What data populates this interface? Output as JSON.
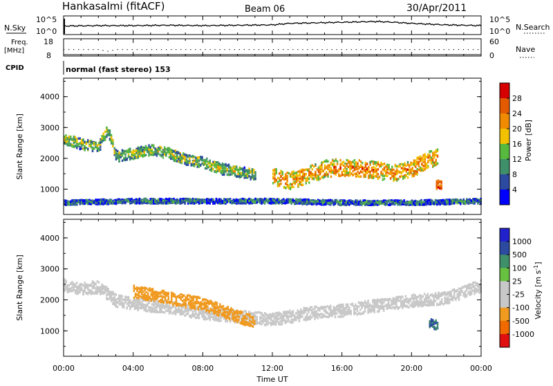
{
  "header": {
    "station": "Hankasalmi (fitACF)",
    "beam": "Beam 06",
    "date": "30/Apr/2011"
  },
  "noise_panel": {
    "left_label": "N.Sky",
    "right_label": "N.Search",
    "left_ticks": [
      "10^5",
      "10^0"
    ],
    "right_ticks": [
      "10^5",
      "10^0"
    ]
  },
  "freq_panel": {
    "left_label_1": "Freq.",
    "left_label_2": "[MHz]",
    "left_ticks": [
      "18",
      "8"
    ],
    "right_label": "Nave",
    "right_ticks": [
      "60",
      "0"
    ]
  },
  "cpid": {
    "label": "CPID",
    "text": "normal (fast stereo) 153"
  },
  "power_panel": {
    "ylabel": "Slant Range [km]",
    "yticks": [
      "4000",
      "3000",
      "2000",
      "1000"
    ],
    "colorbar_label": "Power [dB]",
    "colorbar_ticks": [
      "28",
      "24",
      "20",
      "16",
      "12",
      "8",
      "4"
    ]
  },
  "velocity_panel": {
    "ylabel": "Slant Range [km]",
    "yticks": [
      "4000",
      "3000",
      "2000",
      "1000"
    ],
    "colorbar_label": "Velocity [m s",
    "colorbar_label_sup": "-1",
    "colorbar_label_end": "]",
    "colorbar_ticks": [
      "1000",
      "500",
      "100",
      "25",
      "-25",
      "-100",
      "-500",
      "-1000"
    ]
  },
  "xaxis": {
    "label": "Time UT",
    "ticks": [
      "00:00",
      "04:00",
      "08:00",
      "12:00",
      "16:00",
      "20:00",
      "00:00"
    ]
  },
  "colors": {
    "power_scale": [
      "#0000ff",
      "#2b4aa0",
      "#3f8f6a",
      "#58b93f",
      "#f2c200",
      "#f08a00",
      "#e45a00",
      "#d60000"
    ],
    "velocity_scale": [
      "#e01010",
      "#f06a00",
      "#f09a20",
      "#c8c8c8",
      "#c8c8c8",
      "#67c040",
      "#3f8f6a",
      "#2b4aa0",
      "#2222cc"
    ],
    "ground_scatter": "#c8c8c8"
  },
  "chart_data": [
    {
      "type": "line",
      "title": "",
      "description_key": "noise",
      "xlabel": "",
      "ylabel": "",
      "x_range": [
        "00:00",
        "24:00"
      ],
      "ylim": [
        0,
        5
      ],
      "y_scale": "log10",
      "series": [
        {
          "x": [
            0,
            2,
            4,
            6,
            8,
            10,
            12,
            13,
            14,
            16,
            18,
            19,
            20,
            22,
            24
          ],
          "values": [
            2.3,
            2.4,
            2.4,
            2.5,
            2.4,
            2.5,
            2.6,
            3.0,
            3.1,
            3.3,
            3.5,
            3.3,
            3.0,
            2.6,
            2.4
          ]
        }
      ]
    },
    {
      "type": "scatter",
      "title": "",
      "xlabel": "",
      "ylabel": "Freq. [MHz]",
      "x_range": [
        "00:00",
        "24:00"
      ],
      "ylim": [
        8,
        18
      ],
      "series": [
        {
          "x": [
            0,
            2.0,
            2.5,
            3.0,
            6,
            10,
            14,
            18,
            22,
            24
          ],
          "values": [
            12,
            12,
            11,
            12,
            12,
            12,
            12,
            12,
            12,
            12
          ]
        }
      ]
    },
    {
      "type": "heatmap",
      "title": "",
      "xlabel": "Time UT",
      "ylabel": "Slant Range [km]",
      "x_range": [
        "00:00",
        "24:00"
      ],
      "ylim": [
        180,
        4600
      ],
      "colorbar": {
        "label": "Power [dB]",
        "range": [
          0,
          30
        ],
        "ticks": [
          4,
          8,
          12,
          16,
          20,
          24,
          28
        ]
      },
      "bands": [
        {
          "name": "evening-band",
          "t": [
            0,
            1,
            2,
            2.5,
            3,
            4,
            5,
            6,
            7,
            8,
            9,
            10,
            11
          ],
          "range": [
            2650,
            2500,
            2400,
            3000,
            2100,
            2200,
            2300,
            2200,
            2000,
            1900,
            1700,
            1600,
            1500
          ],
          "width": 350,
          "power": 13
        },
        {
          "name": "main-band",
          "t": [
            12,
            13,
            14,
            15,
            16,
            17,
            18,
            19,
            20,
            21,
            21.5
          ],
          "range": [
            1450,
            1300,
            1500,
            1700,
            1750,
            1700,
            1650,
            1550,
            1700,
            2000,
            2100
          ],
          "width": 550,
          "power": 20
        },
        {
          "name": "near-range",
          "t": [
            0,
            4,
            8,
            12,
            16,
            20,
            24
          ],
          "range": [
            600,
            650,
            650,
            650,
            600,
            600,
            650
          ],
          "width": 150,
          "power": 8
        },
        {
          "name": "spot",
          "t": [
            21.4,
            21.7
          ],
          "range": [
            1200,
            1150
          ],
          "width": 300,
          "power": 25
        }
      ]
    },
    {
      "type": "heatmap",
      "title": "",
      "xlabel": "Time UT",
      "ylabel": "Slant Range [km]",
      "x_range": [
        "00:00",
        "24:00"
      ],
      "ylim": [
        180,
        4600
      ],
      "colorbar": {
        "label": "Velocity [m s-1]",
        "ticks": [
          1000,
          500,
          100,
          25,
          -25,
          -100,
          -500,
          -1000
        ]
      },
      "bands": [
        {
          "name": "ground-scatter",
          "t": [
            0,
            1,
            2,
            3,
            4,
            6,
            8,
            10,
            12,
            14,
            16,
            18,
            20,
            22,
            24
          ],
          "range": [
            2500,
            2400,
            2450,
            2000,
            1900,
            1800,
            1600,
            1500,
            1400,
            1600,
            1700,
            1850,
            2000,
            2100,
            2500
          ],
          "width": 400,
          "velocity": 0
        },
        {
          "name": "negative-patches",
          "t": [
            4,
            5,
            6,
            7,
            8,
            9,
            10,
            11
          ],
          "range": [
            2300,
            2200,
            2100,
            2000,
            1900,
            1700,
            1500,
            1300
          ],
          "width": 400,
          "velocity": -300
        },
        {
          "name": "positive-patch",
          "t": [
            21.0,
            21.5
          ],
          "range": [
            1300,
            1200
          ],
          "width": 300,
          "velocity": 500
        }
      ]
    }
  ]
}
